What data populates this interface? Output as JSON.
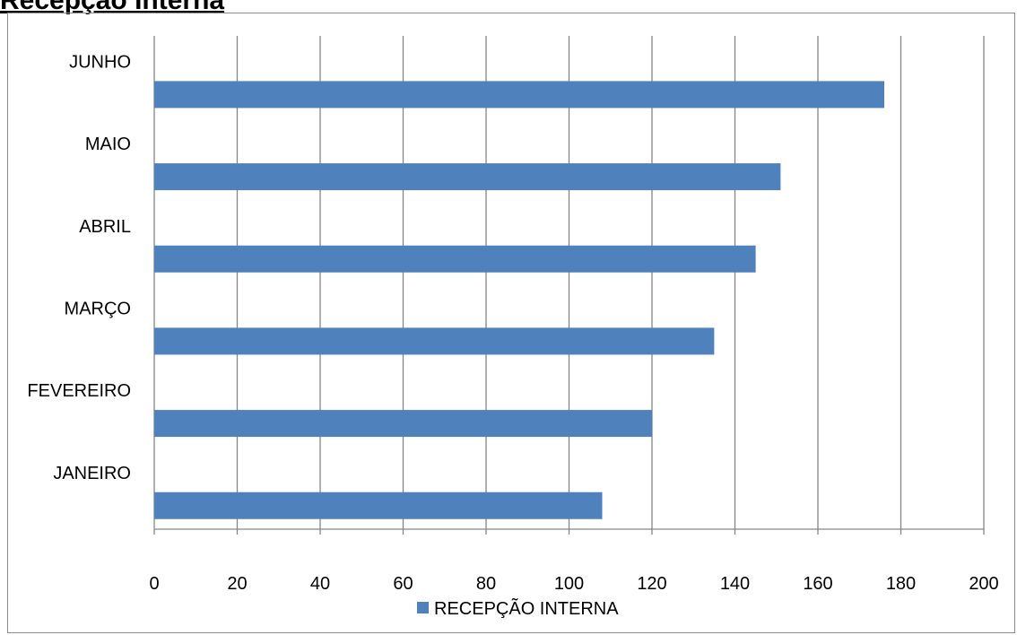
{
  "page": {
    "title": "Recepção Interna"
  },
  "colors": {
    "bar": "#4f81bd",
    "grid": "#868686",
    "frame": "#8c8c8c"
  },
  "chart_data": {
    "type": "bar",
    "orientation": "horizontal",
    "title": "",
    "xlabel": "",
    "ylabel": "",
    "categories": [
      "JANEIRO",
      "FEVEREIRO",
      "MARÇO",
      "ABRIL",
      "MAIO",
      "JUNHO"
    ],
    "series": [
      {
        "name": "RECEPÇÃO INTERNA",
        "values": [
          108,
          120,
          135,
          145,
          151,
          176
        ]
      }
    ],
    "xlim": [
      0,
      200
    ],
    "xticks": [
      0,
      20,
      40,
      60,
      80,
      100,
      120,
      140,
      160,
      180,
      200
    ],
    "grid": "vertical major gridlines",
    "legend": "bottom-center"
  }
}
